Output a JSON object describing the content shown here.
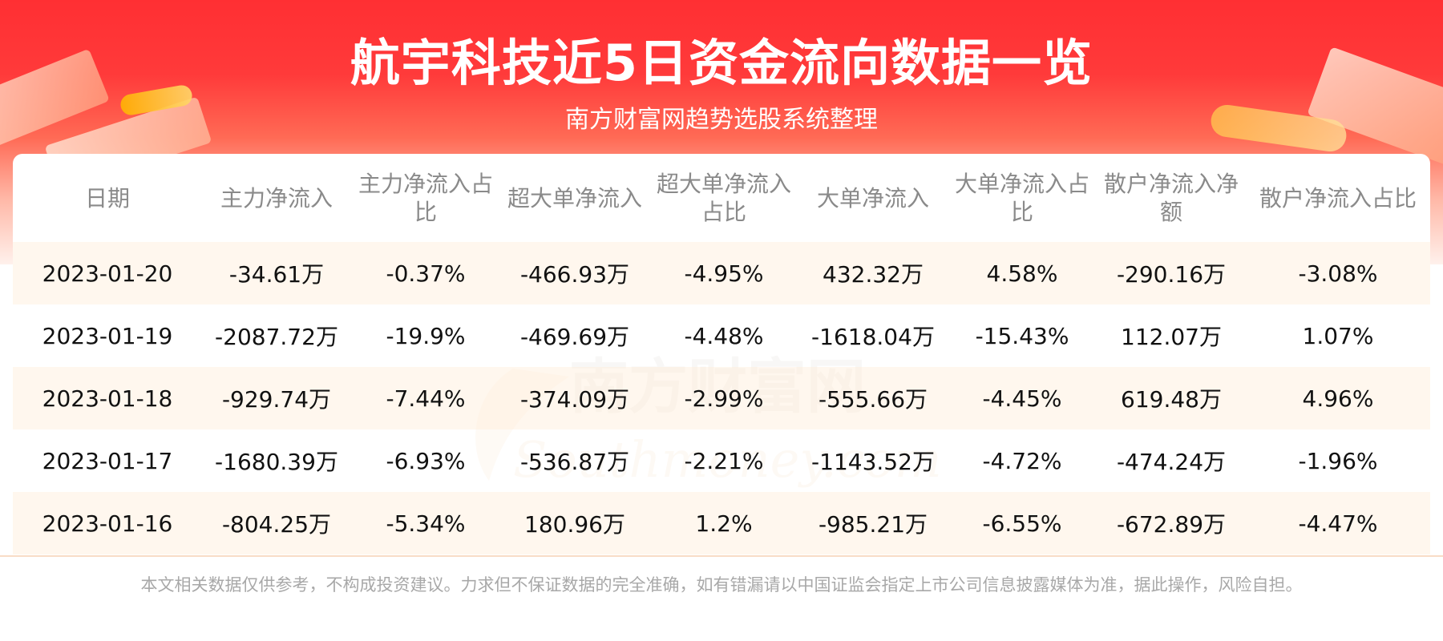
{
  "header": {
    "title": "航宇科技近5日资金流向数据一览",
    "subtitle": "南方财富网趋势选股系统整理"
  },
  "watermark": {
    "cn": "南方财富网",
    "en": "Southmoney.com"
  },
  "table": {
    "columns": [
      "日期",
      "主力净流入",
      "主力净流入占比",
      "超大单净流入",
      "超大单净流入占比",
      "大单净流入",
      "大单净流入占比",
      "散户净流入净额",
      "散户净流入占比"
    ],
    "rows": [
      [
        "2023-01-20",
        "-34.61万",
        "-0.37%",
        "-466.93万",
        "-4.95%",
        "432.32万",
        "4.58%",
        "-290.16万",
        "-3.08%"
      ],
      [
        "2023-01-19",
        "-2087.72万",
        "-19.9%",
        "-469.69万",
        "-4.48%",
        "-1618.04万",
        "-15.43%",
        "112.07万",
        "1.07%"
      ],
      [
        "2023-01-18",
        "-929.74万",
        "-7.44%",
        "-374.09万",
        "-2.99%",
        "-555.66万",
        "-4.45%",
        "619.48万",
        "4.96%"
      ],
      [
        "2023-01-17",
        "-1680.39万",
        "-6.93%",
        "-536.87万",
        "-2.21%",
        "-1143.52万",
        "-4.72%",
        "-474.24万",
        "-1.96%"
      ],
      [
        "2023-01-16",
        "-804.25万",
        "-5.34%",
        "180.96万",
        "1.2%",
        "-985.21万",
        "-6.55%",
        "-672.89万",
        "-4.47%"
      ]
    ]
  },
  "footer": {
    "disclaimer": "本文相关数据仅供参考，不构成投资建议。力求但不保证数据的完全准确，如有错漏请以中国证监会指定上市公司信息披露媒体为准，据此操作，风险自担。"
  },
  "colors": {
    "banner_red": "#ff2f33",
    "row_tint": "#fff4e8",
    "header_text": "#8a8a8a",
    "disclaimer_text": "#a8a8a8"
  }
}
